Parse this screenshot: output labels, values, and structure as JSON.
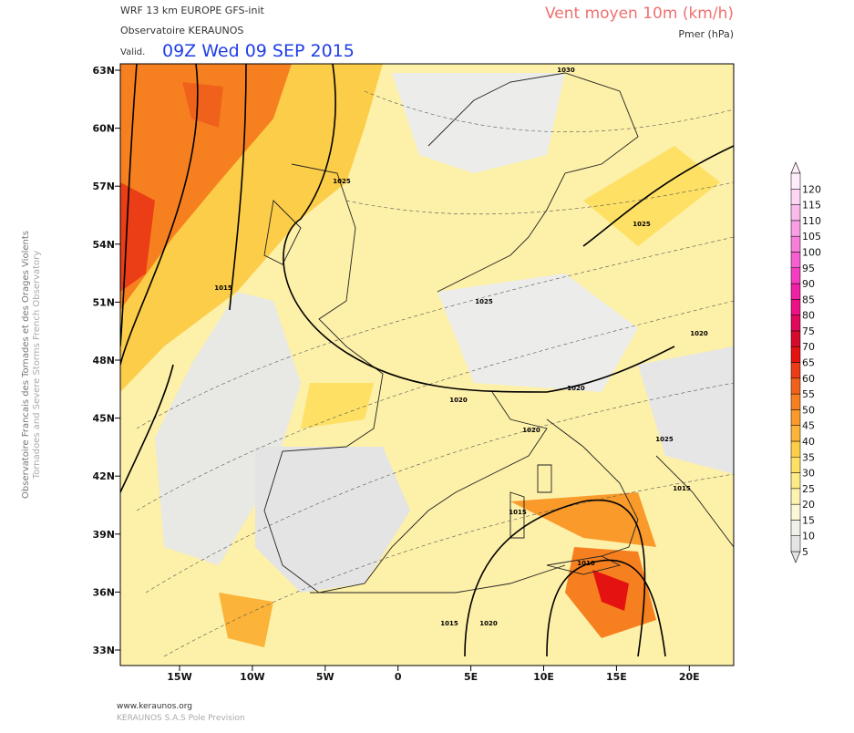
{
  "header": {
    "model": "WRF 13 km EUROPE   GFS-init",
    "org": "Observatoire KERAUNOS",
    "valid_prefix": "Valid.",
    "valid_time": "09Z Wed 09 SEP 2015",
    "field": "Vent moyen 10m (km/h)",
    "contour": "Pmer (hPa)"
  },
  "side": {
    "line1": "Observatoire Francais des Tornades et des Orages Violents",
    "line2": "Tornadoes and Severe Storms French Observatory"
  },
  "lat_labels": [
    "63N",
    "60N",
    "57N",
    "54N",
    "51N",
    "48N",
    "45N",
    "42N",
    "39N",
    "36N",
    "33N"
  ],
  "lon_labels": [
    "15W",
    "10W",
    "5W",
    "0",
    "5E",
    "10E",
    "15E",
    "20E"
  ],
  "isobar_labels": [
    "1030",
    "1025",
    "1015",
    "1025",
    "1025",
    "1020",
    "1020",
    "1020",
    "1020",
    "1015",
    "1015",
    "1010",
    "1015",
    "1025",
    "1020"
  ],
  "colorbar": {
    "levels": [
      5,
      10,
      15,
      20,
      25,
      30,
      35,
      40,
      45,
      50,
      55,
      60,
      65,
      70,
      75,
      80,
      85,
      90,
      95,
      100,
      105,
      110,
      115,
      120
    ],
    "colors": [
      "#e4e4e4",
      "#f1f1ea",
      "#fbf8d8",
      "#fdf3b0",
      "#fdeb85",
      "#fde064",
      "#fccd48",
      "#fbb33a",
      "#f99a2b",
      "#f6801f",
      "#f0621b",
      "#eb3d16",
      "#e51212",
      "#d60a2a",
      "#e0095a",
      "#ec1286",
      "#f020a6",
      "#f43dc0",
      "#f55fcf",
      "#f77fd9",
      "#f89fe3",
      "#fabbeb",
      "#fcd6f3",
      "#feecfa"
    ]
  },
  "footer": {
    "site": "www.keraunos.org",
    "company": "KERAUNOS S.A.S Pole Prevision"
  }
}
